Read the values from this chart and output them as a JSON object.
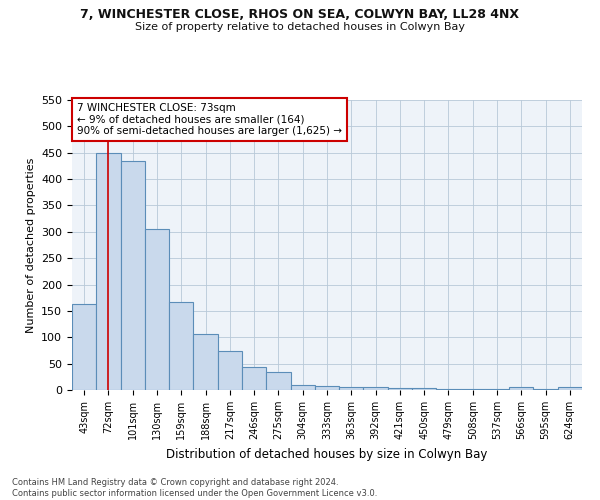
{
  "title1": "7, WINCHESTER CLOSE, RHOS ON SEA, COLWYN BAY, LL28 4NX",
  "title2": "Size of property relative to detached houses in Colwyn Bay",
  "xlabel": "Distribution of detached houses by size in Colwyn Bay",
  "ylabel": "Number of detached properties",
  "footnote": "Contains HM Land Registry data © Crown copyright and database right 2024.\nContains public sector information licensed under the Open Government Licence v3.0.",
  "bin_labels": [
    "43sqm",
    "72sqm",
    "101sqm",
    "130sqm",
    "159sqm",
    "188sqm",
    "217sqm",
    "246sqm",
    "275sqm",
    "304sqm",
    "333sqm",
    "363sqm",
    "392sqm",
    "421sqm",
    "450sqm",
    "479sqm",
    "508sqm",
    "537sqm",
    "566sqm",
    "595sqm",
    "624sqm"
  ],
  "bar_heights": [
    163,
    450,
    435,
    305,
    166,
    106,
    74,
    43,
    34,
    10,
    8,
    6,
    5,
    4,
    3,
    2,
    2,
    2,
    5,
    1,
    5
  ],
  "bar_color": "#c9d9ec",
  "bar_edge_color": "#5b8db8",
  "red_line_x": 1,
  "annotation_text": "7 WINCHESTER CLOSE: 73sqm\n← 9% of detached houses are smaller (164)\n90% of semi-detached houses are larger (1,625) →",
  "annotation_box_color": "#ffffff",
  "annotation_edge_color": "#cc0000",
  "ylim": [
    0,
    550
  ],
  "yticks": [
    0,
    50,
    100,
    150,
    200,
    250,
    300,
    350,
    400,
    450,
    500,
    550
  ],
  "background_color": "#eef3f9"
}
